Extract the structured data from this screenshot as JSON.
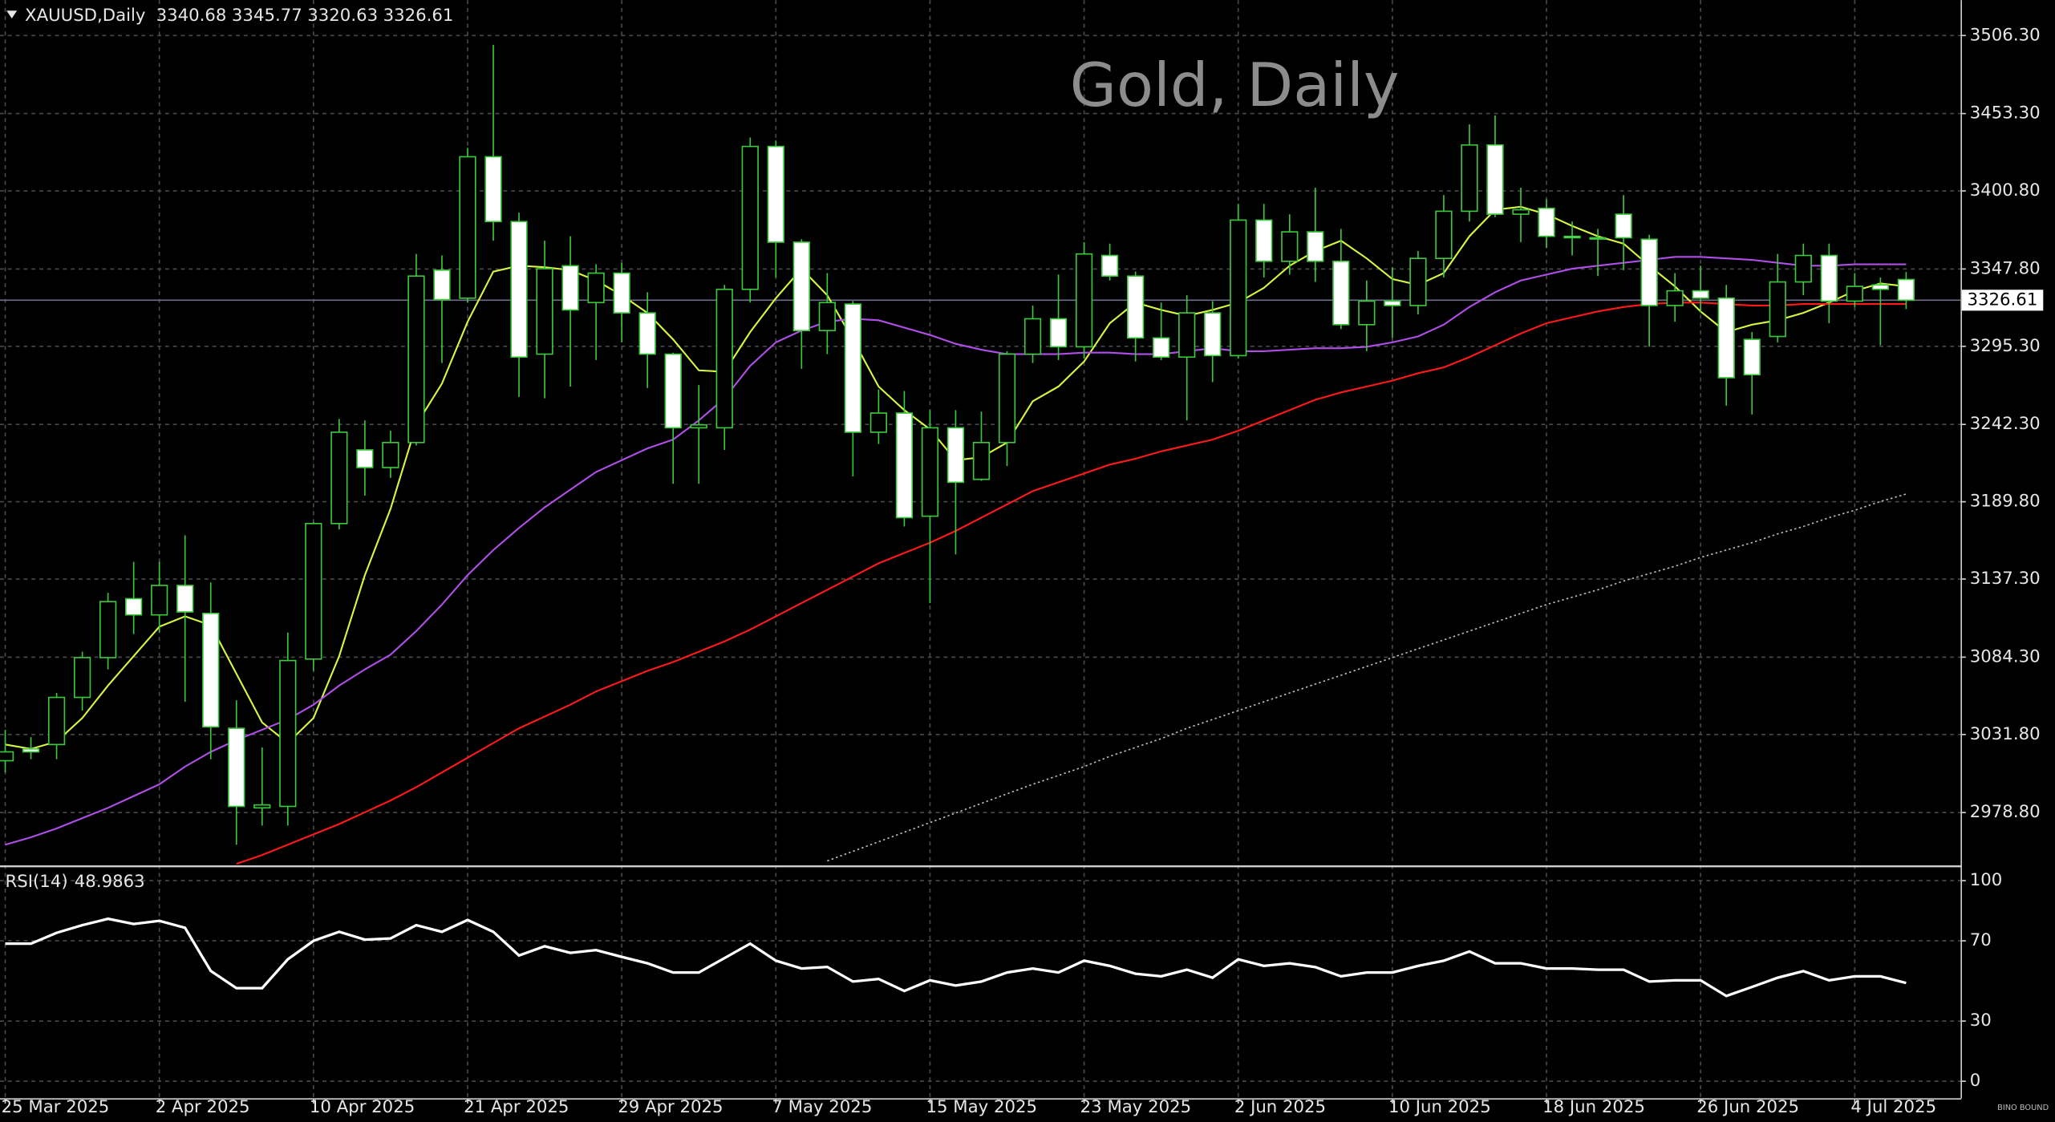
{
  "chart_data": {
    "type": "candlestick",
    "symbol": "XAUUSD,Daily",
    "title": "Gold, Daily",
    "watermark": "BINO BOUND",
    "categories": [
      "25 Mar 2025",
      null,
      null,
      null,
      null,
      null,
      "2 Apr 2025",
      null,
      null,
      null,
      null,
      null,
      "10 Apr 2025",
      null,
      null,
      null,
      null,
      null,
      "21 Apr 2025",
      null,
      null,
      null,
      null,
      null,
      "29 Apr 2025",
      null,
      null,
      null,
      null,
      null,
      "7 May 2025",
      null,
      null,
      null,
      null,
      null,
      "15 May 2025",
      null,
      null,
      null,
      null,
      null,
      "23 May 2025",
      null,
      null,
      null,
      null,
      null,
      "2 Jun 2025",
      null,
      null,
      null,
      null,
      null,
      "10 Jun 2025",
      null,
      null,
      null,
      null,
      null,
      "18 Jun 2025",
      null,
      null,
      null,
      null,
      null,
      "26 Jun 2025",
      null,
      null,
      null,
      null,
      null,
      "4 Jul 2025",
      null,
      null
    ],
    "open": [
      3014,
      3022,
      3025,
      3057,
      3084,
      3124,
      3113,
      3133,
      3114,
      3036,
      2982,
      2983,
      3083,
      3175,
      3225,
      3213,
      3230,
      3347,
      3328,
      3424,
      3380,
      3290,
      3350,
      3325,
      3345,
      3318,
      3290,
      3240,
      3240,
      3334,
      3431,
      3366,
      3306,
      3324,
      3237,
      3250,
      3180,
      3240,
      3205,
      3230,
      3290,
      3314,
      3295,
      3357,
      3343,
      3301,
      3288,
      3318,
      3289,
      3381,
      3353,
      3373,
      3353,
      3310,
      3326,
      3323,
      3355,
      3387,
      3432,
      3385,
      3389,
      3370,
      3369,
      3385,
      3368,
      3323,
      3333,
      3328,
      3300,
      3302,
      3339,
      3357,
      3326,
      3337,
      3340.68
    ],
    "high": [
      3035,
      3030,
      3060,
      3088,
      3128,
      3149,
      3149,
      3167,
      3135,
      3055,
      3023,
      3101,
      3176,
      3246,
      3245,
      3238,
      3358,
      3357,
      3430,
      3500,
      3386,
      3367,
      3370,
      3351,
      3352,
      3332,
      3291,
      3269,
      3337,
      3437,
      3435,
      3368,
      3345,
      3326,
      3266,
      3265,
      3252,
      3252,
      3251,
      3292,
      3323,
      3344,
      3366,
      3365,
      3346,
      3325,
      3330,
      3326,
      3392,
      3392,
      3385,
      3403,
      3375,
      3340,
      3349,
      3360,
      3398,
      3446,
      3452,
      3403,
      3395,
      3380,
      3375,
      3398,
      3371,
      3345,
      3350,
      3337,
      3305,
      3358,
      3365,
      3365,
      3345,
      3342,
      3345.77
    ],
    "low": [
      3006,
      3015,
      3015,
      3048,
      3076,
      3100,
      3101,
      3054,
      3015,
      2957,
      2970,
      2970,
      3075,
      3171,
      3194,
      3206,
      3228,
      3284,
      3325,
      3367,
      3261,
      3260,
      3268,
      3286,
      3298,
      3267,
      3202,
      3202,
      3225,
      3325,
      3342,
      3280,
      3290,
      3207,
      3229,
      3173,
      3121,
      3154,
      3204,
      3214,
      3284,
      3286,
      3287,
      3340,
      3285,
      3286,
      3245,
      3271,
      3287,
      3342,
      3344,
      3339,
      3307,
      3292,
      3301,
      3317,
      3342,
      3380,
      3383,
      3366,
      3362,
      3357,
      3343,
      3347,
      3295,
      3312,
      3318,
      3255,
      3249,
      3298,
      3330,
      3311,
      3322,
      3296,
      3320.63
    ],
    "close": [
      3020,
      3020,
      3057,
      3084,
      3122,
      3113,
      3133,
      3115,
      3037,
      2983,
      2984,
      3082,
      3175,
      3237,
      3213,
      3230,
      3343,
      3327,
      3424,
      3380,
      3288,
      3348,
      3320,
      3345,
      3318,
      3290,
      3240,
      3242,
      3334,
      3431,
      3366,
      3306,
      3325,
      3237,
      3250,
      3179,
      3240,
      3203,
      3230,
      3290,
      3314,
      3295,
      3358,
      3343,
      3301,
      3288,
      3318,
      3289,
      3381,
      3353,
      3373,
      3353,
      3310,
      3326,
      3323,
      3355,
      3387,
      3432,
      3385,
      3388,
      3370,
      3369,
      3369,
      3369,
      3323,
      3333,
      3328,
      3274,
      3276,
      3339,
      3357,
      3326,
      3336,
      3334,
      3326.61
    ],
    "colors": {
      "up_fill": "#000000",
      "down_fill": "#ffffff",
      "outline": "#3cc83c",
      "price_line": "#6e6e8c"
    },
    "grid": true,
    "ylim": [
      2943.2,
      3530.3
    ],
    "yticks": [
      {
        "value": 3506.3,
        "label": "3506.30"
      },
      {
        "value": 3453.3,
        "label": "3453.30"
      },
      {
        "value": 3400.8,
        "label": "3400.80"
      },
      {
        "value": 3347.8,
        "label": "3347.80"
      },
      {
        "value": 3295.3,
        "label": "3295.30"
      },
      {
        "value": 3242.3,
        "label": "3242.30"
      },
      {
        "value": 3189.8,
        "label": "3189.80"
      },
      {
        "value": 3137.3,
        "label": "3137.30"
      },
      {
        "value": 3084.3,
        "label": "3084.30"
      },
      {
        "value": 3031.8,
        "label": "3031.80"
      },
      {
        "value": 2978.8,
        "label": "2978.80"
      }
    ],
    "series": [
      {
        "color": "#d7f542",
        "style": "solid",
        "values": [
          3025,
          3022,
          3027,
          3043,
          3065,
          3085,
          3105,
          3112,
          3106,
          3073,
          3040,
          3026,
          3043,
          3085,
          3140,
          3185,
          3242,
          3270,
          3312,
          3346,
          3350,
          3349,
          3347,
          3340,
          3330,
          3318,
          3300,
          3279,
          3278,
          3305,
          3328,
          3348,
          3330,
          3300,
          3268,
          3252,
          3239,
          3218,
          3220,
          3230,
          3258,
          3268,
          3285,
          3311,
          3325,
          3320,
          3316,
          3320,
          3325,
          3335,
          3350,
          3360,
          3367,
          3355,
          3341,
          3337,
          3345,
          3370,
          3388,
          3390,
          3385,
          3377,
          3370,
          3365,
          3350,
          3336,
          3319,
          3305,
          3310,
          3313,
          3318,
          3325,
          3333,
          3338,
          3336
        ]
      },
      {
        "color": "#b04ee8",
        "style": "solid",
        "values": [
          2957,
          2962,
          2968,
          2975,
          2982,
          2990,
          2998,
          3010,
          3020,
          3028,
          3035,
          3042,
          3052,
          3065,
          3076,
          3086,
          3102,
          3120,
          3140,
          3157,
          3172,
          3186,
          3198,
          3210,
          3218,
          3226,
          3232,
          3245,
          3260,
          3282,
          3298,
          3306,
          3312,
          3314,
          3313,
          3308,
          3303,
          3297,
          3293,
          3290,
          3290,
          3290,
          3291,
          3291,
          3290,
          3290,
          3292,
          3294,
          3292,
          3292,
          3293,
          3294,
          3294,
          3295,
          3298,
          3302,
          3310,
          3322,
          3332,
          3340,
          3344,
          3348,
          3350,
          3352,
          3354,
          3356,
          3356,
          3355,
          3354,
          3352,
          3350,
          3350,
          3351,
          3351,
          3351
        ]
      },
      {
        "color": "#ff1a1a",
        "style": "solid",
        "values": [
          null,
          null,
          null,
          null,
          null,
          null,
          null,
          null,
          null,
          2944,
          2950,
          2957,
          2964,
          2971,
          2979,
          2987,
          2996,
          3006,
          3016,
          3026,
          3036,
          3044,
          3052,
          3061,
          3068,
          3075,
          3081,
          3088,
          3095,
          3103,
          3112,
          3121,
          3130,
          3139,
          3148,
          3155,
          3162,
          3170,
          3179,
          3188,
          3197,
          3203,
          3209,
          3215,
          3219,
          3224,
          3228,
          3232,
          3238,
          3245,
          3252,
          3259,
          3264,
          3268,
          3272,
          3277,
          3281,
          3288,
          3296,
          3304,
          3311,
          3315,
          3319,
          3322,
          3324,
          3325,
          3325,
          3324,
          3323,
          3323,
          3324,
          3324,
          3324,
          3324,
          3324
        ]
      },
      {
        "color": "#bdbdbd",
        "style": "dotted",
        "values": [
          null,
          null,
          null,
          null,
          null,
          null,
          null,
          null,
          null,
          null,
          null,
          null,
          null,
          null,
          null,
          null,
          null,
          null,
          null,
          null,
          null,
          null,
          null,
          null,
          null,
          null,
          null,
          null,
          null,
          null,
          null,
          null,
          2946,
          2952.5,
          2959,
          2965.5,
          2972,
          2978.5,
          2985,
          2991.5,
          2998,
          3004,
          3010,
          3017,
          3023,
          3029,
          3036,
          3042,
          3048,
          3054,
          3060,
          3066,
          3072,
          3078,
          3084,
          3090,
          3096,
          3102,
          3108,
          3114,
          3120,
          3125,
          3130,
          3136,
          3141,
          3146,
          3152,
          3157,
          3162,
          3168,
          3173,
          3179,
          3184,
          3190,
          3195
        ]
      }
    ],
    "rsi": {
      "label": "RSI(14)",
      "color": "#ffffff",
      "ylim": [
        -8.5,
        106.5
      ],
      "yticks": [
        100,
        70,
        30,
        0
      ],
      "values": [
        68.6,
        68.6,
        74,
        77.8,
        81,
        78.4,
        80,
        76.5,
        55,
        46.4,
        46.4,
        60.8,
        70,
        74.5,
        70.6,
        71.2,
        77.8,
        74.5,
        80.4,
        74.5,
        62.7,
        67.3,
        64,
        65.4,
        62,
        58.8,
        54.2,
        54.2,
        61.4,
        68.6,
        60.1,
        56.2,
        57,
        49.7,
        51,
        45,
        50.3,
        47.7,
        49.7,
        54.2,
        56.2,
        54.2,
        60.1,
        57.5,
        53.6,
        52.3,
        55.6,
        51.6,
        60.8,
        57.5,
        58.8,
        56.9,
        52.3,
        54.2,
        54.2,
        57.5,
        60.1,
        64.7,
        58.8,
        58.8,
        56.2,
        56.2,
        55.6,
        55.6,
        49.7,
        50.3,
        50.3,
        42.5,
        47,
        51.6,
        54.9,
        50.3,
        52.3,
        52.3,
        48.9863
      ]
    }
  }
}
